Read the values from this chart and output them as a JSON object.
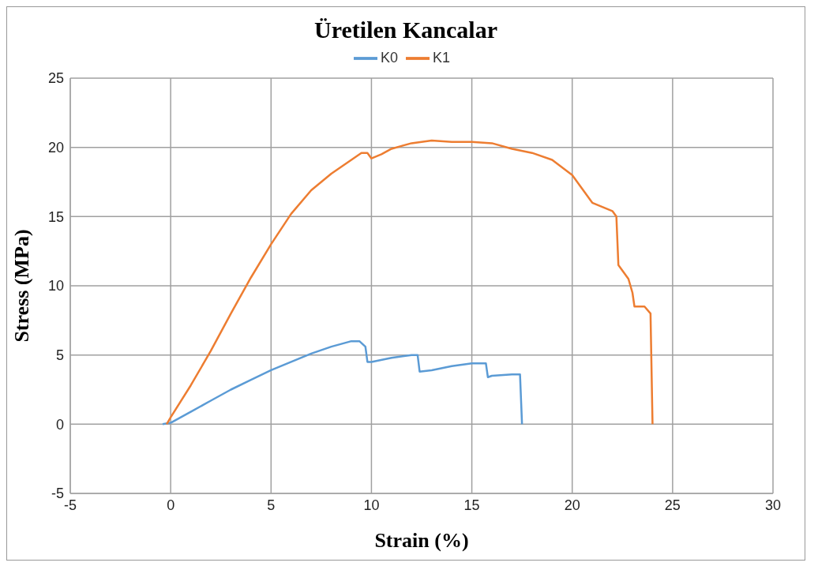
{
  "chart_data": {
    "type": "line",
    "title": "Üretilen Kancalar",
    "xlabel": "Strain (%)",
    "ylabel": "Stress (MPa)",
    "xlim": [
      -5,
      30
    ],
    "xticks": [
      -5,
      0,
      5,
      10,
      15,
      20,
      25,
      30
    ],
    "ylim": [
      -5,
      25
    ],
    "yticks": [
      -5,
      0,
      5,
      10,
      15,
      20,
      25
    ],
    "grid": true,
    "legend": "top",
    "marker": "none",
    "line_style": "solid",
    "series": [
      {
        "name": "K0",
        "color": "#5b9bd5",
        "x": [
          -0.4,
          0,
          1,
          2,
          3,
          4,
          5,
          6,
          7,
          8,
          9,
          9.4,
          9.7,
          9.8,
          10,
          11,
          12,
          12.3,
          12.4,
          13,
          14,
          15,
          15.7,
          15.8,
          16,
          17,
          17.4,
          17.5
        ],
        "values": [
          0,
          0.1,
          0.9,
          1.7,
          2.5,
          3.2,
          3.9,
          4.5,
          5.1,
          5.6,
          6,
          6,
          5.6,
          4.5,
          4.5,
          4.8,
          5,
          5,
          3.8,
          3.9,
          4.2,
          4.4,
          4.4,
          3.4,
          3.5,
          3.6,
          3.6,
          0
        ]
      },
      {
        "name": "K1",
        "color": "#ed7d31",
        "x": [
          -0.2,
          0,
          1,
          2,
          3,
          4,
          5,
          6,
          7,
          8,
          9,
          9.5,
          9.8,
          10,
          10.5,
          11,
          12,
          13,
          14,
          15,
          16,
          17,
          18,
          19,
          20,
          20.5,
          21,
          21.5,
          22,
          22.2,
          22.3,
          22.8,
          23,
          23.1,
          23.6,
          23.9,
          24
        ],
        "values": [
          0,
          0.5,
          2.8,
          5.3,
          8,
          10.6,
          13,
          15.2,
          16.9,
          18.1,
          19.1,
          19.6,
          19.6,
          19.2,
          19.5,
          19.9,
          20.3,
          20.5,
          20.4,
          20.4,
          20.3,
          19.9,
          19.6,
          19.1,
          18,
          17,
          16,
          15.7,
          15.4,
          15,
          11.5,
          10.5,
          9.5,
          8.5,
          8.5,
          8,
          0
        ]
      }
    ]
  }
}
